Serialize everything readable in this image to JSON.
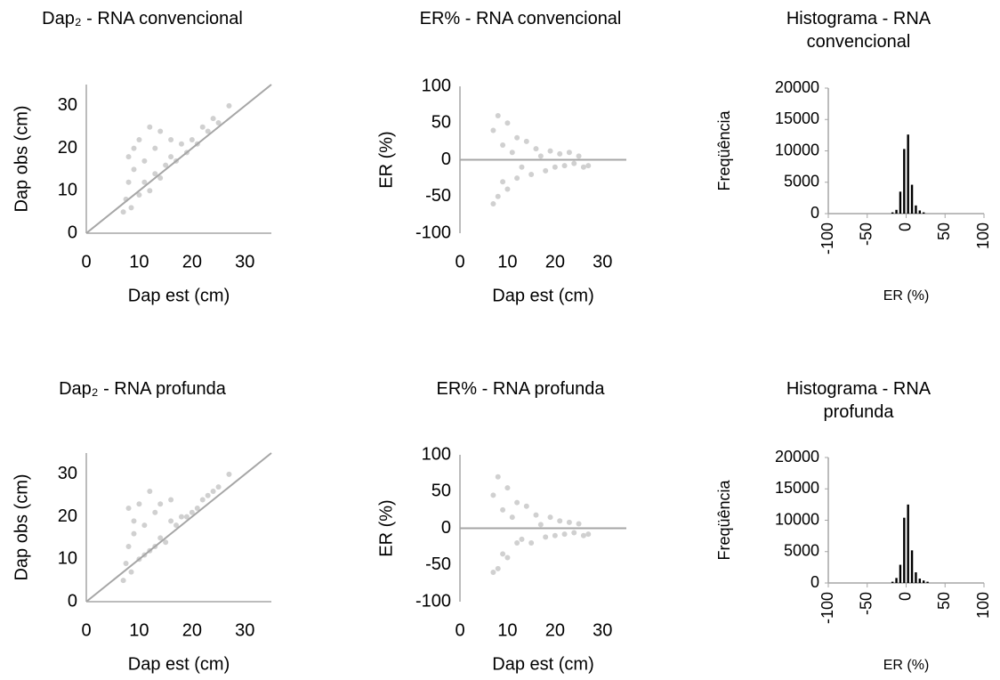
{
  "chart_data": [
    {
      "type": "scatter",
      "title": "Dap₂ - RNA convencional",
      "x_label": "Dap est (cm)",
      "y_label": "Dap obs (cm)",
      "x": [
        7,
        7.5,
        8,
        8,
        8.5,
        9,
        9,
        10,
        10,
        11,
        11,
        12,
        12,
        13,
        13,
        14,
        14,
        15,
        16,
        16,
        17,
        18,
        19,
        20,
        21,
        22,
        23,
        24,
        25,
        27
      ],
      "values": [
        5,
        8,
        12,
        18,
        6,
        15,
        20,
        9,
        22,
        12,
        17,
        10,
        25,
        14,
        20,
        13,
        24,
        16,
        18,
        22,
        17,
        21,
        19,
        22,
        21,
        25,
        24,
        27,
        26,
        30
      ],
      "color": "#d0d0d0",
      "line_color": "#a6a6a6",
      "identity_line": true,
      "xlim": [
        0,
        35
      ],
      "ylim": [
        0,
        35
      ],
      "xticks": [
        0,
        10,
        20,
        30
      ],
      "yticks": [
        0,
        10,
        20,
        30
      ]
    },
    {
      "type": "scatter",
      "title": "ER% - RNA convencional",
      "x_label": "Dap est (cm)",
      "y_label": "ER (%)",
      "x": [
        7,
        7,
        8,
        8,
        9,
        9,
        10,
        10,
        11,
        12,
        12,
        13,
        14,
        15,
        16,
        17,
        18,
        19,
        20,
        21,
        22,
        23,
        24,
        25,
        26,
        27
      ],
      "values": [
        -60,
        40,
        60,
        -50,
        20,
        -30,
        50,
        -40,
        10,
        30,
        -25,
        -10,
        25,
        -20,
        15,
        5,
        -15,
        12,
        -10,
        8,
        -8,
        10,
        -5,
        5,
        -10,
        -8
      ],
      "color": "#d0d0d0",
      "line_color": "#a6a6a6",
      "zero_line": true,
      "xlim": [
        0,
        35
      ],
      "ylim": [
        -100,
        100
      ],
      "xticks": [
        0,
        10,
        20,
        30
      ],
      "yticks": [
        -100,
        -50,
        0,
        50,
        100
      ]
    },
    {
      "type": "histogram",
      "title": "Histograma - RNA convencional",
      "x_label": "ER (%)",
      "y_label": "Freqüência",
      "bins": [
        -100,
        -95,
        -90,
        -85,
        -80,
        -75,
        -70,
        -65,
        -60,
        -55,
        -50,
        -45,
        -40,
        -35,
        -30,
        -25,
        -20,
        -15,
        -10,
        -5,
        0,
        5,
        10,
        15,
        20,
        25,
        30,
        35,
        40,
        45,
        50,
        55,
        60,
        65,
        70,
        75,
        80,
        85,
        90,
        95,
        100
      ],
      "values": [
        0,
        0,
        0,
        0,
        0,
        0,
        0,
        0,
        0,
        0,
        0,
        0,
        0,
        0,
        0,
        0,
        200,
        600,
        3500,
        10300,
        12600,
        4600,
        1300,
        500,
        200,
        0,
        0,
        0,
        0,
        0,
        0,
        0,
        0,
        0,
        0,
        0,
        0,
        0,
        0,
        0
      ],
      "color": "#000000",
      "axis_color": "#a6a6a6",
      "xlim": [
        -100,
        100
      ],
      "ylim": [
        0,
        20000
      ],
      "xticks": [
        -100,
        -50,
        0,
        50,
        100
      ],
      "yticks": [
        0,
        5000,
        10000,
        15000,
        20000
      ]
    },
    {
      "type": "scatter",
      "title": "Dap₂ - RNA profunda",
      "x_label": "Dap est (cm)",
      "y_label": "Dap obs (cm)",
      "x": [
        7,
        7.5,
        8,
        8,
        8.5,
        9,
        9,
        10,
        10,
        11,
        11,
        12,
        12,
        13,
        13,
        14,
        14,
        15,
        16,
        16,
        17,
        18,
        19,
        20,
        21,
        22,
        23,
        24,
        25,
        27
      ],
      "values": [
        5,
        9,
        13,
        22,
        7,
        16,
        19,
        10,
        23,
        11,
        18,
        12,
        26,
        13,
        21,
        15,
        23,
        14,
        19,
        24,
        18,
        20,
        20,
        21,
        22,
        24,
        25,
        26,
        27,
        30
      ],
      "color": "#d0d0d0",
      "line_color": "#a6a6a6",
      "identity_line": true,
      "xlim": [
        0,
        35
      ],
      "ylim": [
        0,
        35
      ],
      "xticks": [
        0,
        10,
        20,
        30
      ],
      "yticks": [
        0,
        10,
        20,
        30
      ]
    },
    {
      "type": "scatter",
      "title": "ER% - RNA profunda",
      "x_label": "Dap est (cm)",
      "y_label": "ER (%)",
      "x": [
        7,
        7,
        8,
        8,
        9,
        9,
        10,
        10,
        11,
        12,
        12,
        13,
        14,
        15,
        16,
        17,
        18,
        19,
        20,
        21,
        22,
        23,
        24,
        25,
        26,
        27
      ],
      "values": [
        -60,
        45,
        70,
        -55,
        25,
        -35,
        55,
        -40,
        15,
        35,
        -20,
        -15,
        30,
        -20,
        18,
        5,
        -12,
        15,
        -10,
        10,
        -8,
        8,
        -6,
        6,
        -10,
        -8
      ],
      "color": "#d0d0d0",
      "line_color": "#a6a6a6",
      "zero_line": true,
      "xlim": [
        0,
        35
      ],
      "ylim": [
        -100,
        100
      ],
      "xticks": [
        0,
        10,
        20,
        30
      ],
      "yticks": [
        -100,
        -50,
        0,
        50,
        100
      ]
    },
    {
      "type": "histogram",
      "title": "Histograma - RNA profunda",
      "x_label": "ER (%)",
      "y_label": "Freqüência",
      "bins": [
        -100,
        -95,
        -90,
        -85,
        -80,
        -75,
        -70,
        -65,
        -60,
        -55,
        -50,
        -45,
        -40,
        -35,
        -30,
        -25,
        -20,
        -15,
        -10,
        -5,
        0,
        5,
        10,
        15,
        20,
        25,
        30,
        35,
        40,
        45,
        50,
        55,
        60,
        65,
        70,
        75,
        80,
        85,
        90,
        95,
        100
      ],
      "values": [
        0,
        0,
        0,
        0,
        0,
        0,
        0,
        0,
        0,
        0,
        0,
        0,
        0,
        0,
        0,
        0,
        200,
        800,
        2900,
        10400,
        12500,
        5200,
        1700,
        700,
        400,
        200,
        0,
        0,
        0,
        0,
        0,
        0,
        0,
        0,
        0,
        0,
        0,
        0,
        0,
        0
      ],
      "color": "#000000",
      "axis_color": "#a6a6a6",
      "xlim": [
        -100,
        100
      ],
      "ylim": [
        0,
        20000
      ],
      "xticks": [
        -100,
        -50,
        0,
        50,
        100
      ],
      "yticks": [
        0,
        5000,
        10000,
        15000,
        20000
      ]
    }
  ]
}
